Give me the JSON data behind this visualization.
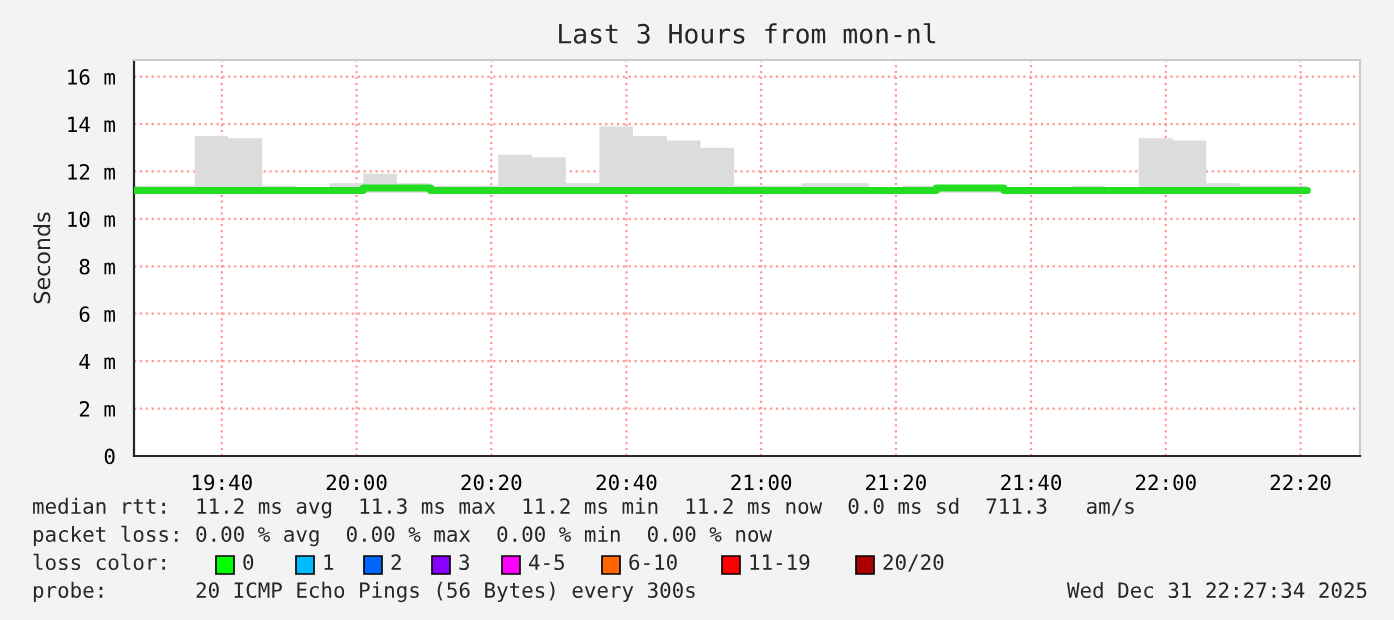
{
  "chart_data": {
    "type": "step",
    "title": "Last 3 Hours from mon-nl",
    "ylabel": "Seconds",
    "xlim": [
      19.45,
      22.48
    ],
    "ylim": [
      0,
      16.7
    ],
    "xticks": [
      {
        "value": 19.667,
        "label": "19:40"
      },
      {
        "value": 20.0,
        "label": "20:00"
      },
      {
        "value": 20.333,
        "label": "20:20"
      },
      {
        "value": 20.667,
        "label": "20:40"
      },
      {
        "value": 21.0,
        "label": "21:00"
      },
      {
        "value": 21.333,
        "label": "21:20"
      },
      {
        "value": 21.667,
        "label": "21:40"
      },
      {
        "value": 22.0,
        "label": "22:00"
      },
      {
        "value": 22.333,
        "label": "22:20"
      }
    ],
    "yticks": [
      0,
      {
        "value": 2,
        "label": "2 m"
      },
      {
        "value": 4,
        "label": "4 m"
      },
      {
        "value": 6,
        "label": "6 m"
      },
      {
        "value": 8,
        "label": "8 m"
      },
      {
        "value": 10,
        "label": "10 m"
      },
      {
        "value": 12,
        "label": "12 m"
      },
      {
        "value": 14,
        "label": "14 m"
      },
      {
        "value": 16,
        "label": "16 m"
      }
    ],
    "grid": true,
    "legend": false,
    "x": [
      19.45,
      19.6,
      19.683,
      19.767,
      19.85,
      19.933,
      20.017,
      20.1,
      20.183,
      20.267,
      20.35,
      20.433,
      20.517,
      20.6,
      20.683,
      20.767,
      20.85,
      20.933,
      21.017,
      21.1,
      21.183,
      21.267,
      21.35,
      21.433,
      21.517,
      21.6,
      21.683,
      21.767,
      21.85,
      21.933,
      22.017,
      22.1,
      22.183,
      22.267,
      22.35
    ],
    "series": [
      {
        "color": "#22dd22",
        "values": [
          11.2,
          11.2,
          11.2,
          11.2,
          11.2,
          11.2,
          11.3,
          11.3,
          11.2,
          11.2,
          11.2,
          11.2,
          11.2,
          11.2,
          11.2,
          11.2,
          11.2,
          11.2,
          11.2,
          11.2,
          11.2,
          11.2,
          11.2,
          11.3,
          11.3,
          11.2,
          11.2,
          11.2,
          11.2,
          11.2,
          11.2,
          11.2,
          11.2,
          11.2,
          11.2
        ],
        "lower": [
          11.1,
          11.1,
          11.1,
          11.1,
          11.1,
          11.1,
          11.1,
          11.1,
          11.1,
          11.1,
          11.1,
          11.1,
          11.1,
          11.1,
          11.1,
          11.1,
          11.1,
          11.1,
          11.1,
          11.1,
          11.1,
          11.1,
          11.1,
          11.1,
          11.1,
          11.1,
          11.1,
          11.1,
          11.1,
          11.1,
          11.1,
          11.1,
          11.1,
          11.1,
          11.1
        ],
        "upper": [
          11.4,
          13.5,
          13.4,
          11.4,
          11.3,
          11.5,
          11.9,
          11.5,
          11.4,
          11.4,
          12.7,
          12.6,
          11.5,
          13.9,
          13.5,
          13.3,
          13.0,
          11.4,
          11.4,
          11.5,
          11.5,
          11.3,
          11.4,
          11.3,
          11.3,
          11.3,
          11.3,
          11.4,
          11.3,
          13.4,
          13.3,
          11.5,
          11.4,
          11.4,
          11.4
        ]
      }
    ],
    "annotations": [
      "median rtt:  11.2 ms avg  11.3 ms max  11.2 ms min  11.2 ms now  0.0 ms sd  711.3   am/s",
      "packet loss: 0.00 % avg  0.00 % max  0.00 % min  0.00 % now",
      "loss color:",
      "0",
      "1",
      "2",
      "3",
      "4-5",
      "6-10",
      "11-19",
      "20/20",
      "probe:       20 ICMP Echo Pings (56 Bytes) every 300s",
      "Wed Dec 31 22:27:34 2025"
    ]
  }
}
